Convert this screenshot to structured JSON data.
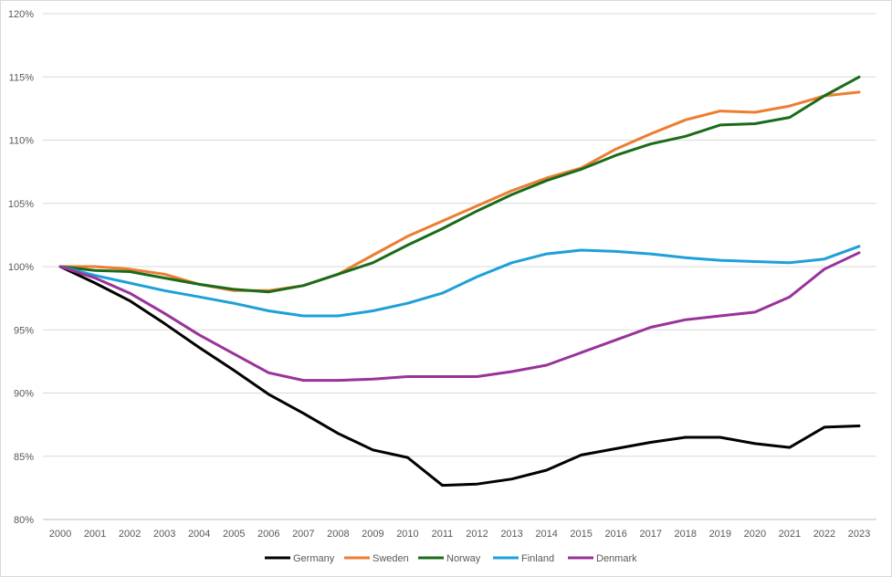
{
  "chart_data": {
    "type": "line",
    "title": "",
    "xlabel": "",
    "ylabel": "",
    "x": [
      "2000",
      "2001",
      "2002",
      "2003",
      "2004",
      "2005",
      "2006",
      "2007",
      "2008",
      "2009",
      "2010",
      "2011",
      "2012",
      "2013",
      "2014",
      "2015",
      "2016",
      "2017",
      "2018",
      "2019",
      "2020",
      "2021",
      "2022",
      "2023"
    ],
    "ylim": [
      80,
      120
    ],
    "y_ticks": [
      80,
      85,
      90,
      95,
      100,
      105,
      110,
      115,
      120
    ],
    "y_tick_labels": [
      "80%",
      "85%",
      "90%",
      "95%",
      "100%",
      "105%",
      "110%",
      "115%",
      "120%"
    ],
    "grid": true,
    "legend_position": "bottom",
    "series": [
      {
        "name": "Germany",
        "color": "#000000",
        "values": [
          100,
          98.7,
          97.3,
          95.5,
          93.6,
          91.8,
          89.9,
          88.4,
          86.8,
          85.5,
          84.9,
          82.7,
          82.8,
          83.2,
          83.9,
          85.1,
          85.6,
          86.1,
          86.5,
          86.5,
          86.0,
          85.7,
          87.3,
          87.4
        ]
      },
      {
        "name": "Sweden",
        "color": "#ed7d31",
        "values": [
          100,
          100.0,
          99.8,
          99.4,
          98.6,
          98.1,
          98.1,
          98.5,
          99.4,
          100.9,
          102.4,
          103.6,
          104.8,
          106.0,
          107.0,
          107.8,
          109.3,
          110.5,
          111.6,
          112.3,
          112.2,
          112.7,
          113.5,
          113.8
        ]
      },
      {
        "name": "Norway",
        "color": "#1a6b1a",
        "values": [
          100,
          99.7,
          99.6,
          99.1,
          98.6,
          98.2,
          98.0,
          98.5,
          99.4,
          100.3,
          101.7,
          103.0,
          104.4,
          105.7,
          106.8,
          107.7,
          108.8,
          109.7,
          110.3,
          111.2,
          111.3,
          111.8,
          113.5,
          115.0
        ]
      },
      {
        "name": "Finland",
        "color": "#1ea0d8",
        "values": [
          100,
          99.3,
          98.7,
          98.1,
          97.6,
          97.1,
          96.5,
          96.1,
          96.1,
          96.5,
          97.1,
          97.9,
          99.2,
          100.3,
          101.0,
          101.3,
          101.2,
          101.0,
          100.7,
          100.5,
          100.4,
          100.3,
          100.6,
          101.6
        ]
      },
      {
        "name": "Denmark",
        "color": "#993399",
        "values": [
          100,
          99.1,
          97.9,
          96.3,
          94.6,
          93.1,
          91.6,
          91.0,
          91.0,
          91.1,
          91.3,
          91.3,
          91.3,
          91.7,
          92.2,
          93.2,
          94.2,
          95.2,
          95.8,
          96.1,
          96.4,
          97.6,
          99.8,
          101.1
        ]
      }
    ]
  }
}
